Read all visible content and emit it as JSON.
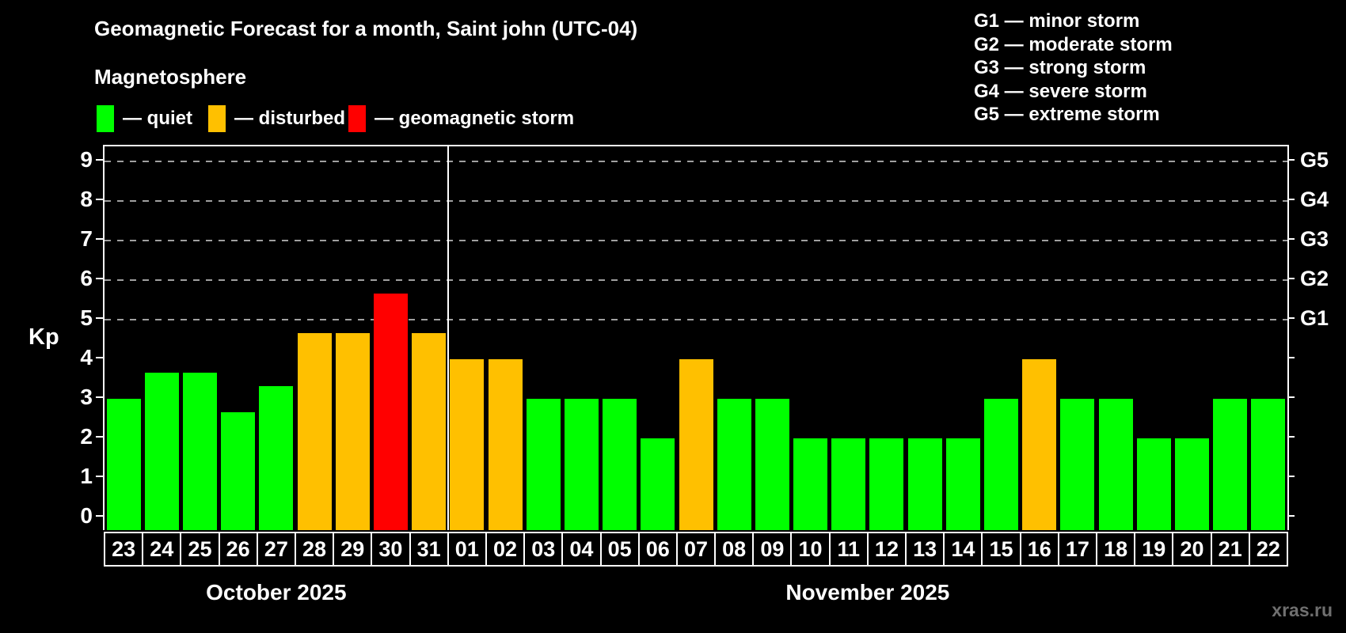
{
  "title": "Geomagnetic Forecast for a month, Saint john (UTC-04)",
  "subtitle": "Magnetosphere",
  "legend": {
    "items": [
      {
        "key": "quiet",
        "label": "— quiet"
      },
      {
        "key": "disturbed",
        "label": "— disturbed"
      },
      {
        "key": "storm",
        "label": "— geomagnetic storm"
      }
    ]
  },
  "g_scale_legend": [
    "G1 — minor storm",
    "G2 — moderate storm",
    "G3 — strong storm",
    "G4 — severe storm",
    "G5 — extreme storm"
  ],
  "colors": {
    "quiet": "#00ff00",
    "disturbed": "#ffc000",
    "storm": "#ff0000",
    "gridline": "#a0a0a0",
    "axis": "#ffffff",
    "text": "#ffffff",
    "watermark": "#6f6f6f",
    "background": "#000000"
  },
  "chart_data": {
    "type": "bar",
    "ylabel": "Kp",
    "y_ticks": [
      0,
      1,
      2,
      3,
      4,
      5,
      6,
      7,
      8,
      9
    ],
    "ylim": [
      -0.32,
      9.38
    ],
    "grid": "dashed-horizontal",
    "gridlines_kp": [
      5,
      6,
      7,
      8,
      9
    ],
    "right_axis": [
      {
        "label": "G1",
        "kp": 5
      },
      {
        "label": "G2",
        "kp": 6
      },
      {
        "label": "G3",
        "kp": 7
      },
      {
        "label": "G4",
        "kp": 8
      },
      {
        "label": "G5",
        "kp": 9
      }
    ],
    "months": [
      {
        "label": "October 2025",
        "days": [
          {
            "day": "23",
            "kp": 3.0,
            "status": "quiet"
          },
          {
            "day": "24",
            "kp": 3.67,
            "status": "quiet"
          },
          {
            "day": "25",
            "kp": 3.67,
            "status": "quiet"
          },
          {
            "day": "26",
            "kp": 2.67,
            "status": "quiet"
          },
          {
            "day": "27",
            "kp": 3.33,
            "status": "quiet"
          },
          {
            "day": "28",
            "kp": 4.67,
            "status": "disturbed"
          },
          {
            "day": "29",
            "kp": 4.67,
            "status": "disturbed"
          },
          {
            "day": "30",
            "kp": 5.67,
            "status": "storm"
          },
          {
            "day": "31",
            "kp": 4.67,
            "status": "disturbed"
          }
        ]
      },
      {
        "label": "November 2025",
        "days": [
          {
            "day": "01",
            "kp": 4.0,
            "status": "disturbed"
          },
          {
            "day": "02",
            "kp": 4.0,
            "status": "disturbed"
          },
          {
            "day": "03",
            "kp": 3.0,
            "status": "quiet"
          },
          {
            "day": "04",
            "kp": 3.0,
            "status": "quiet"
          },
          {
            "day": "05",
            "kp": 3.0,
            "status": "quiet"
          },
          {
            "day": "06",
            "kp": 2.0,
            "status": "quiet"
          },
          {
            "day": "07",
            "kp": 4.0,
            "status": "disturbed"
          },
          {
            "day": "08",
            "kp": 3.0,
            "status": "quiet"
          },
          {
            "day": "09",
            "kp": 3.0,
            "status": "quiet"
          },
          {
            "day": "10",
            "kp": 2.0,
            "status": "quiet"
          },
          {
            "day": "11",
            "kp": 2.0,
            "status": "quiet"
          },
          {
            "day": "12",
            "kp": 2.0,
            "status": "quiet"
          },
          {
            "day": "13",
            "kp": 2.0,
            "status": "quiet"
          },
          {
            "day": "14",
            "kp": 2.0,
            "status": "quiet"
          },
          {
            "day": "15",
            "kp": 3.0,
            "status": "quiet"
          },
          {
            "day": "16",
            "kp": 4.0,
            "status": "disturbed"
          },
          {
            "day": "17",
            "kp": 3.0,
            "status": "quiet"
          },
          {
            "day": "18",
            "kp": 3.0,
            "status": "quiet"
          },
          {
            "day": "19",
            "kp": 2.0,
            "status": "quiet"
          },
          {
            "day": "20",
            "kp": 2.0,
            "status": "quiet"
          },
          {
            "day": "21",
            "kp": 3.0,
            "status": "quiet"
          },
          {
            "day": "22",
            "kp": 3.0,
            "status": "quiet"
          }
        ]
      }
    ]
  },
  "watermark": "xras.ru"
}
